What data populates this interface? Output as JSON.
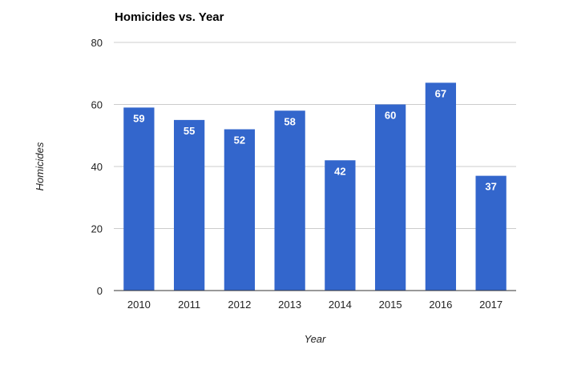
{
  "chart_data": {
    "type": "bar",
    "title": "Homicides vs. Year",
    "xlabel": "Year",
    "ylabel": "Homicides",
    "categories": [
      "2010",
      "2011",
      "2012",
      "2013",
      "2014",
      "2015",
      "2016",
      "2017"
    ],
    "series": [
      {
        "values": [
          59,
          55,
          52,
          58,
          42,
          60,
          67,
          37
        ],
        "color": "#3366cc"
      }
    ],
    "data_labels": [
      "59",
      "55",
      "52",
      "58",
      "42",
      "60",
      "67",
      "37"
    ],
    "ylim": [
      0,
      80
    ],
    "yticks": [
      "0",
      "20",
      "40",
      "60",
      "80"
    ],
    "grid": true,
    "legend": "none",
    "colors": {
      "bar": "#3366cc",
      "gridline": "#cccccc",
      "baseline": "#333333"
    }
  }
}
